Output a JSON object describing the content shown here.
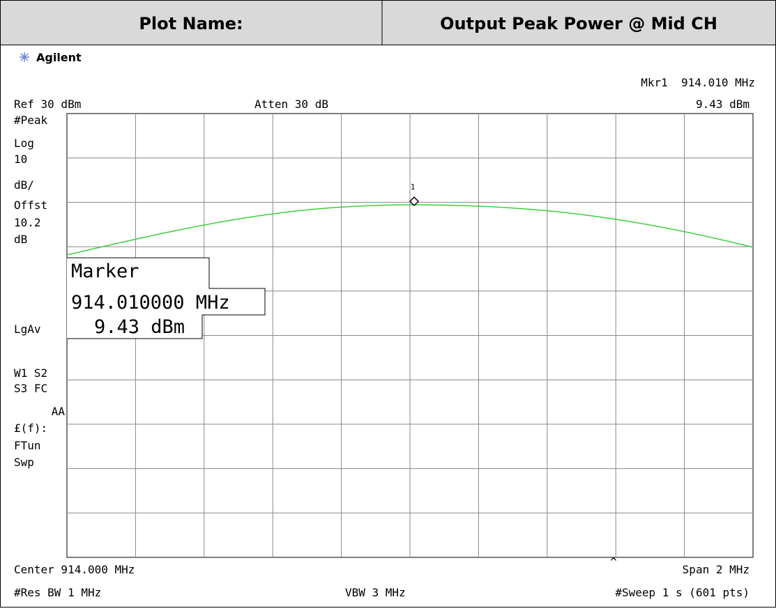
{
  "header": {
    "label": "Plot Name:",
    "title": "Output Peak Power @ Mid CH"
  },
  "display": {
    "brand": "Agilent",
    "marker_readout": "Mkr1  914.010 MHz",
    "ref_level": "Ref 30 dBm",
    "attenuation": "Atten 30 dB",
    "marker_level": "9.43 dBm",
    "side_labels": [
      "#Peak",
      "Log",
      "10",
      "dB/",
      "Offst",
      "10.2",
      "dB",
      "LgAv",
      "W1  S2",
      "S3  FC",
      "AA",
      "£(f):",
      "FTun",
      "Swp"
    ],
    "marker_box": {
      "title": "Marker",
      "frequency": "914.010000 MHz",
      "level": "9.43 dBm"
    },
    "marker_number": "1",
    "center": "Center 914.000 MHz",
    "caret": "^",
    "span": "Span 2 MHz",
    "res_bw": "#Res BW 1 MHz",
    "vbw": "VBW 3 MHz",
    "sweep": "#Sweep 1 s (601 pts)"
  }
}
